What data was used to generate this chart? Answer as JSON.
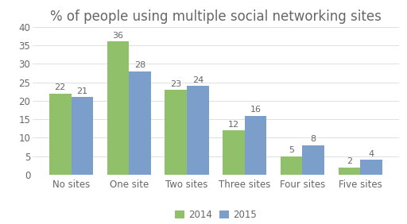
{
  "title": "% of people using multiple social networking sites",
  "categories": [
    "No sites",
    "One site",
    "Two sites",
    "Three sites",
    "Four sites",
    "Five sites"
  ],
  "values_2014": [
    22,
    36,
    23,
    12,
    5,
    2
  ],
  "values_2015": [
    21,
    28,
    24,
    16,
    8,
    4
  ],
  "color_2014": "#90c06a",
  "color_2015": "#7b9ecb",
  "ylim": [
    0,
    40
  ],
  "yticks": [
    0,
    5,
    10,
    15,
    20,
    25,
    30,
    35,
    40
  ],
  "legend_labels": [
    "2014",
    "2015"
  ],
  "bar_width": 0.38,
  "title_fontsize": 12,
  "tick_fontsize": 8.5,
  "label_fontsize": 8,
  "legend_fontsize": 8.5,
  "background_color": "#ffffff",
  "grid_color": "#e0e0e0",
  "text_color": "#666666"
}
